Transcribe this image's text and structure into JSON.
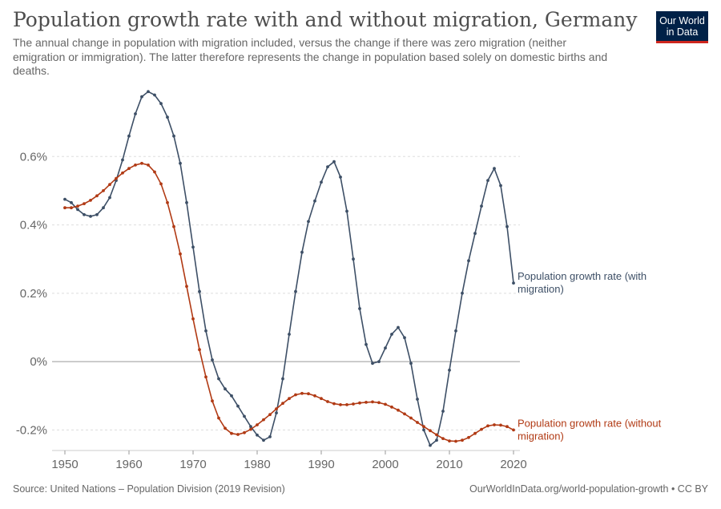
{
  "header": {
    "title": "Population growth rate with and without migration, Germany",
    "subtitle": "The annual change in population with migration included, versus the change if there was zero migration (neither emigration or immigration). The latter therefore represents the change in population based solely on domestic births and deaths."
  },
  "logo": {
    "line1": "Our World",
    "line2": "in Data"
  },
  "footer": {
    "source": "Source: United Nations – Population Division (2019 Revision)",
    "credit": "OurWorldInData.org/world-population-growth • CC BY"
  },
  "colors": {
    "with_migration": "#3d4f66",
    "without_migration": "#b13a14",
    "zero_line": "#999999",
    "grid": "#dddddd"
  },
  "chart_data": {
    "type": "line",
    "ylim": [
      -0.26,
      0.8
    ],
    "xlim": [
      1950,
      2020
    ],
    "y_ticks": [
      -0.2,
      0,
      0.2,
      0.4,
      0.6
    ],
    "y_tick_labels": [
      "-0.2%",
      "0%",
      "0.2%",
      "0.4%",
      "0.6%"
    ],
    "x_ticks": [
      1950,
      1960,
      1970,
      1980,
      1990,
      2000,
      2010,
      2020
    ],
    "x_tick_labels": [
      "1950",
      "1960",
      "1970",
      "1980",
      "1990",
      "2000",
      "2010",
      "2020"
    ],
    "grid": true,
    "x": [
      1950,
      1951,
      1952,
      1953,
      1954,
      1955,
      1956,
      1957,
      1958,
      1959,
      1960,
      1961,
      1962,
      1963,
      1964,
      1965,
      1966,
      1967,
      1968,
      1969,
      1970,
      1971,
      1972,
      1973,
      1974,
      1975,
      1976,
      1977,
      1978,
      1979,
      1980,
      1981,
      1982,
      1983,
      1984,
      1985,
      1986,
      1987,
      1988,
      1989,
      1990,
      1991,
      1992,
      1993,
      1994,
      1995,
      1996,
      1997,
      1998,
      1999,
      2000,
      2001,
      2002,
      2003,
      2004,
      2005,
      2006,
      2007,
      2008,
      2009,
      2010,
      2011,
      2012,
      2013,
      2014,
      2015,
      2016,
      2017,
      2018,
      2019,
      2020
    ],
    "series": [
      {
        "name": "Population growth rate (with migration)",
        "label": "Population growth rate (with migration)",
        "color": "#3d4f66",
        "values": [
          0.475,
          0.465,
          0.445,
          0.43,
          0.425,
          0.43,
          0.45,
          0.48,
          0.53,
          0.59,
          0.66,
          0.725,
          0.775,
          0.79,
          0.78,
          0.755,
          0.715,
          0.66,
          0.58,
          0.465,
          0.335,
          0.205,
          0.09,
          0.005,
          -0.05,
          -0.08,
          -0.1,
          -0.13,
          -0.16,
          -0.19,
          -0.215,
          -0.23,
          -0.22,
          -0.15,
          -0.05,
          0.08,
          0.205,
          0.32,
          0.41,
          0.47,
          0.525,
          0.57,
          0.585,
          0.54,
          0.44,
          0.3,
          0.155,
          0.05,
          -0.005,
          0.0,
          0.04,
          0.08,
          0.1,
          0.07,
          -0.005,
          -0.11,
          -0.2,
          -0.245,
          -0.23,
          -0.145,
          -0.025,
          0.09,
          0.2,
          0.295,
          0.375,
          0.455,
          0.53,
          0.565,
          0.515,
          0.395,
          0.23
        ]
      },
      {
        "name": "Population growth rate (without migration)",
        "label": "Population growth rate (without migration)",
        "color": "#b13a14",
        "values": [
          0.45,
          0.45,
          0.455,
          0.462,
          0.472,
          0.485,
          0.5,
          0.518,
          0.536,
          0.552,
          0.565,
          0.575,
          0.58,
          0.575,
          0.555,
          0.52,
          0.465,
          0.395,
          0.315,
          0.22,
          0.125,
          0.035,
          -0.045,
          -0.115,
          -0.165,
          -0.195,
          -0.21,
          -0.213,
          -0.208,
          -0.198,
          -0.185,
          -0.17,
          -0.155,
          -0.138,
          -0.122,
          -0.108,
          -0.097,
          -0.093,
          -0.094,
          -0.1,
          -0.108,
          -0.117,
          -0.123,
          -0.126,
          -0.126,
          -0.124,
          -0.121,
          -0.119,
          -0.118,
          -0.12,
          -0.125,
          -0.133,
          -0.142,
          -0.153,
          -0.165,
          -0.178,
          -0.19,
          -0.202,
          -0.214,
          -0.225,
          -0.232,
          -0.233,
          -0.23,
          -0.222,
          -0.21,
          -0.198,
          -0.188,
          -0.185,
          -0.186,
          -0.19,
          -0.2
        ]
      }
    ]
  }
}
